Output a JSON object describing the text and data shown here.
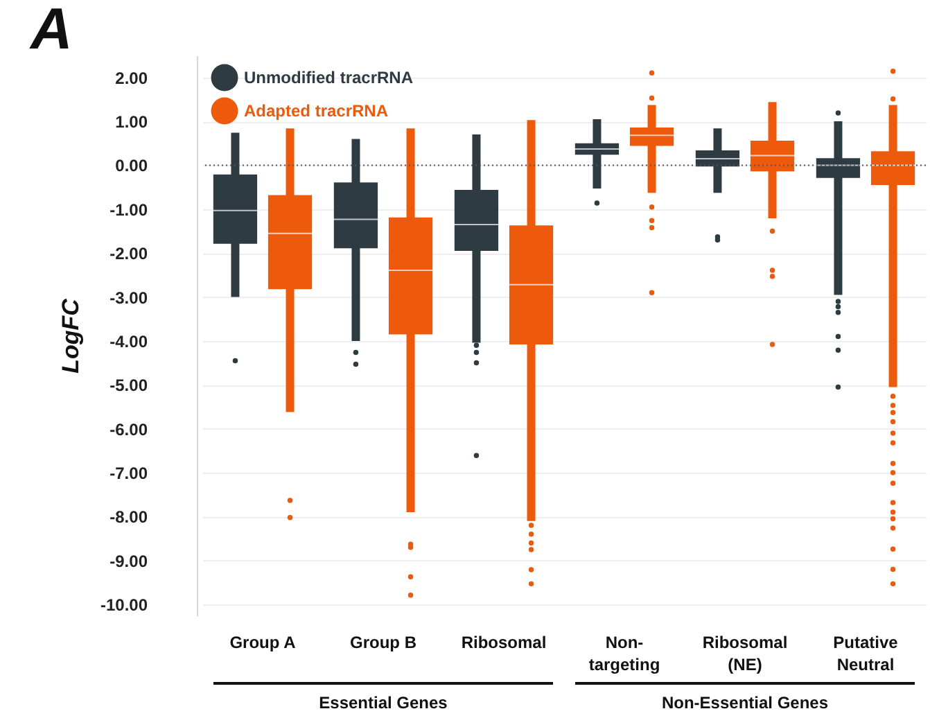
{
  "chart_data": {
    "type": "box",
    "title": "A",
    "ylabel": "LogFC",
    "categories": [
      "Group A",
      "Group B",
      "Ribosomal",
      "Non-targeting",
      "Ribosomal (NE)",
      "Putative Neutral"
    ],
    "series": [
      {
        "name": "Unmodified tracrRNA",
        "color": "#2e3b43",
        "boxes": [
          {
            "low": -3.0,
            "q1": -1.79,
            "median": -1.03,
            "q3": -0.21,
            "high": 0.74,
            "outliers": [
              -4.45
            ]
          },
          {
            "low": -4.0,
            "q1": -1.89,
            "median": -1.23,
            "q3": -0.39,
            "high": 0.6,
            "outliers": [
              -4.26,
              -4.53
            ]
          },
          {
            "low": -4.04,
            "q1": -1.95,
            "median": -1.35,
            "q3": -0.56,
            "high": 0.7,
            "outliers": [
              -4.1,
              -4.26,
              -4.5,
              -6.61
            ]
          },
          {
            "low": -0.53,
            "q1": 0.24,
            "median": 0.37,
            "q3": 0.5,
            "high": 1.05,
            "outliers": [
              -0.86
            ]
          },
          {
            "low": -0.63,
            "q1": -0.03,
            "median": 0.15,
            "q3": 0.34,
            "high": 0.84,
            "outliers": [
              -1.63,
              -1.7
            ]
          },
          {
            "low": -2.95,
            "q1": -0.29,
            "median": 0.0,
            "q3": 0.16,
            "high": 1.0,
            "outliers": [
              1.19,
              -3.1,
              -3.22,
              -3.35,
              -3.9,
              -4.21,
              -5.05
            ]
          }
        ]
      },
      {
        "name": "Adapted tracrRNA",
        "color": "#ee5a0c",
        "boxes": [
          {
            "low": -5.62,
            "q1": -2.82,
            "median": -1.55,
            "q3": -0.68,
            "high": 0.84,
            "outliers": [
              -7.63,
              -8.02
            ]
          },
          {
            "low": -7.9,
            "q1": -3.85,
            "median": -2.39,
            "q3": -1.19,
            "high": 0.84,
            "outliers": [
              -8.63,
              -8.7,
              -9.37,
              -9.79
            ]
          },
          {
            "low": -8.1,
            "q1": -4.08,
            "median": -2.72,
            "q3": -1.37,
            "high": 1.03,
            "outliers": [
              -8.2,
              -8.4,
              -8.6,
              -8.75,
              -9.21,
              -9.53
            ]
          },
          {
            "low": -0.63,
            "q1": 0.44,
            "median": 0.68,
            "q3": 0.86,
            "high": 1.37,
            "outliers": [
              2.1,
              1.53,
              -0.95,
              -1.26,
              -1.42,
              -2.9
            ]
          },
          {
            "low": -1.21,
            "q1": -0.14,
            "median": 0.22,
            "q3": 0.56,
            "high": 1.44,
            "outliers": [
              -1.5,
              -2.39,
              -2.53,
              -4.08
            ]
          },
          {
            "low": -5.05,
            "q1": -0.45,
            "median": 0.0,
            "q3": 0.32,
            "high": 1.37,
            "outliers": [
              2.14,
              1.51,
              -5.26,
              -5.47,
              -5.63,
              -5.84,
              -6.1,
              -6.32,
              -6.79,
              -7.0,
              -7.24,
              -7.68,
              -7.9,
              -8.05,
              -8.26,
              -8.74,
              -9.2,
              -9.53
            ]
          }
        ]
      }
    ],
    "ylim": [
      -10.25,
      2.5
    ],
    "yticks": [
      {
        "value": 2,
        "label": "2.00"
      },
      {
        "value": 1,
        "label": "1.00"
      },
      {
        "value": 0,
        "label": "0.00"
      },
      {
        "value": -1,
        "label": "-1.00"
      },
      {
        "value": -2,
        "label": "-2.00"
      },
      {
        "value": -3,
        "label": "-3.00"
      },
      {
        "value": -4,
        "label": "-4.00"
      },
      {
        "value": -5,
        "label": "-5.00"
      },
      {
        "value": -6,
        "label": "-6.00"
      },
      {
        "value": -7,
        "label": "-7.00"
      },
      {
        "value": -8,
        "label": "-8.00"
      },
      {
        "value": -9,
        "label": "-9.00"
      },
      {
        "value": -10,
        "label": "-10.00"
      }
    ],
    "grid": "y",
    "legend": "top left",
    "ref_lines": [
      {
        "axis": "y",
        "value": 0,
        "color": "#555555",
        "line_style": "dotted"
      }
    ],
    "annotations": [
      "Essential Genes",
      "Non-Essential Genes"
    ]
  }
}
